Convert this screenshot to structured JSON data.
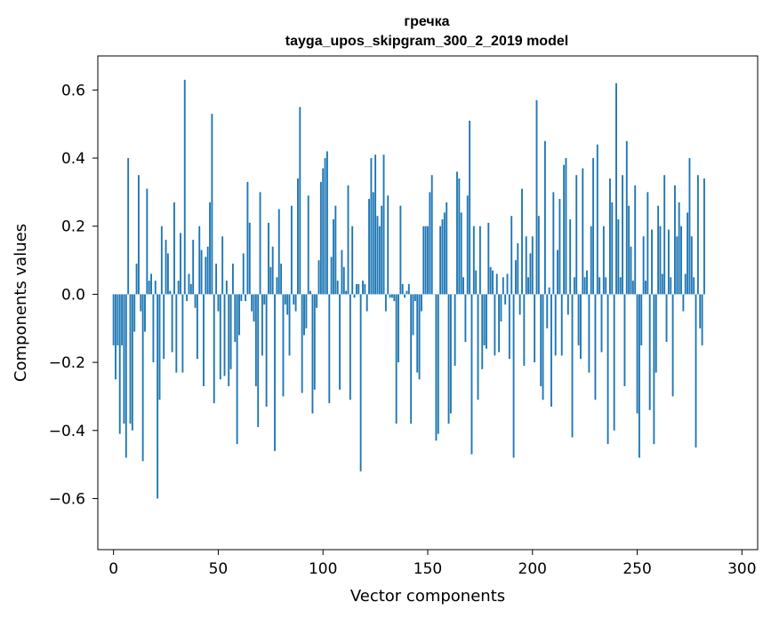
{
  "chart_data": {
    "type": "bar",
    "title": "гречка",
    "subtitle": "tayga_upos_skipgram_300_2_2019 model",
    "xlabel": "Vector components",
    "ylabel": "Components values",
    "xlim": [
      -7.5,
      307.5
    ],
    "ylim": [
      -0.75,
      0.7
    ],
    "xticks": [
      0,
      50,
      100,
      150,
      200,
      250,
      300
    ],
    "yticks": [
      -0.6,
      -0.4,
      -0.2,
      0.0,
      0.2,
      0.4,
      0.6
    ],
    "ytick_labels": [
      "−0.6",
      "−0.4",
      "−0.2",
      "0.0",
      "0.2",
      "0.4",
      "0.6"
    ],
    "grid": false,
    "bar_color": "#1f77b4",
    "values": [
      -0.15,
      -0.25,
      -0.15,
      -0.41,
      -0.15,
      -0.38,
      -0.48,
      0.4,
      -0.38,
      -0.4,
      -0.11,
      0.09,
      0.35,
      -0.05,
      -0.49,
      -0.11,
      0.31,
      0.04,
      0.06,
      -0.2,
      0.04,
      -0.6,
      -0.31,
      0.2,
      -0.19,
      0.16,
      0.12,
      0.01,
      -0.17,
      0.27,
      -0.23,
      0.04,
      0.18,
      -0.23,
      0.63,
      -0.02,
      0.06,
      0.03,
      0.16,
      -0.04,
      -0.19,
      0.2,
      0.13,
      -0.27,
      0.11,
      0.14,
      0.27,
      0.53,
      -0.32,
      0.09,
      -0.05,
      -0.25,
      0.17,
      -0.24,
      0.04,
      -0.27,
      -0.22,
      0.09,
      -0.14,
      -0.44,
      -0.12,
      -0.02,
      0.12,
      -0.02,
      0.33,
      0.21,
      -0.05,
      -0.08,
      -0.27,
      -0.39,
      0.3,
      -0.18,
      -0.03,
      -0.33,
      0.21,
      0.08,
      0.14,
      -0.46,
      0.05,
      0.25,
      0.09,
      -0.3,
      -0.03,
      -0.06,
      -0.18,
      0.26,
      -0.03,
      -0.05,
      0.34,
      0.55,
      -0.29,
      -0.12,
      -0.1,
      0.29,
      0.01,
      -0.35,
      -0.28,
      -0.04,
      0.1,
      0.33,
      0.37,
      0.4,
      0.42,
      -0.32,
      0.11,
      0.22,
      0.26,
      0.04,
      -0.28,
      0.13,
      0.08,
      0.01,
      0.32,
      -0.31,
      0.2,
      -0.01,
      0.03,
      0.03,
      -0.52,
      0.04,
      0.03,
      -0.05,
      0.28,
      0.4,
      0.3,
      0.41,
      0.23,
      0.2,
      0.26,
      0.41,
      -0.05,
      0.29,
      -0.01,
      -0.01,
      -0.02,
      -0.38,
      -0.2,
      0.26,
      0.03,
      -0.01,
      0.01,
      0.03,
      -0.38,
      -0.12,
      -0.02,
      -0.23,
      -0.25,
      -0.05,
      0.2,
      0.2,
      0.2,
      0.3,
      0.35,
      0.0,
      -0.43,
      -0.41,
      0.2,
      0.22,
      0.24,
      0.27,
      -0.38,
      -0.35,
      0.0,
      -0.21,
      0.36,
      0.34,
      0.24,
      0.05,
      -0.14,
      0.29,
      0.51,
      -0.47,
      0.2,
      0.07,
      -0.31,
      0.2,
      -0.22,
      -0.15,
      -0.16,
      0.21,
      0.08,
      0.07,
      -0.18,
      0.06,
      -0.17,
      -0.08,
      0.05,
      -0.03,
      0.06,
      -0.19,
      0.23,
      -0.48,
      0.1,
      0.15,
      -0.06,
      0.31,
      -0.21,
      0.17,
      0.05,
      0.12,
      0.17,
      -0.2,
      0.57,
      0.23,
      -0.27,
      -0.31,
      0.45,
      -0.1,
      0.02,
      -0.33,
      0.3,
      -0.18,
      0.13,
      0.28,
      -0.18,
      0.38,
      0.4,
      -0.06,
      0.22,
      -0.42,
      0.05,
      0.35,
      -0.15,
      -0.19,
      0.37,
      0.05,
      0.07,
      -0.23,
      0.2,
      0.4,
      -0.31,
      0.44,
      0.05,
      -0.17,
      0.2,
      0.05,
      -0.44,
      0.34,
      0.27,
      -0.4,
      0.62,
      0.22,
      0.05,
      0.35,
      -0.27,
      0.45,
      0.26,
      0.14,
      0.04,
      0.32,
      -0.35,
      -0.48,
      -0.15,
      0.17,
      0.04,
      0.3,
      -0.34,
      0.19,
      -0.44,
      -0.23,
      0.26,
      0.2,
      0.06,
      0.35,
      -0.14,
      0.19,
      0.05,
      -0.3,
      0.32,
      0.17,
      0.27,
      0.2,
      -0.05,
      0.06,
      0.24,
      0.4,
      0.17,
      0.05,
      -0.45,
      0.35,
      -0.1,
      -0.15,
      0.34
    ]
  }
}
